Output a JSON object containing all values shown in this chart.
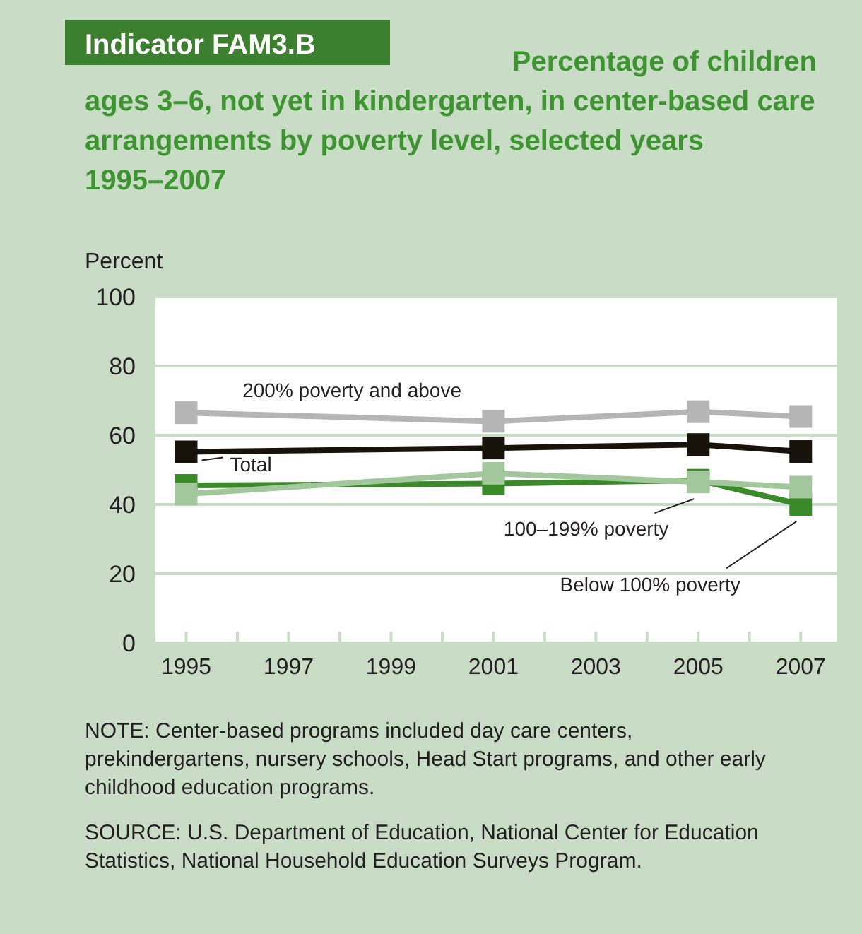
{
  "chart_data": {
    "type": "line",
    "title": "Indicator FAM3.B",
    "subtitle": "Percentage of children ages 3–6, not yet in kindergarten, in center-based care arrangements by poverty level, selected years 1995–2007",
    "ylabel": "Percent",
    "x": [
      1995,
      2001,
      2005,
      2007
    ],
    "xlim": [
      1994.4,
      2007.7
    ],
    "xticks": [
      1995,
      {
        "value": 1996,
        "label": null
      },
      1997,
      {
        "value": 1998,
        "label": null
      },
      1999,
      {
        "value": 2000,
        "label": null
      },
      2001,
      {
        "value": 2002,
        "label": null
      },
      2003,
      {
        "value": 2004,
        "label": null
      },
      2005,
      {
        "value": 2006,
        "label": null
      },
      2007
    ],
    "ylim": [
      0,
      100
    ],
    "yticks": [
      0,
      20,
      40,
      60,
      80,
      100
    ],
    "grid": "y",
    "marker": "square",
    "line_style": "solid",
    "series": [
      {
        "name": "Below 100% poverty",
        "color": "#3a8a2a",
        "values": [
          45.5,
          46,
          47,
          40
        ]
      },
      {
        "name": "100–199% poverty",
        "color": "#a3c79d",
        "values": [
          43,
          49,
          46.5,
          45
        ]
      },
      {
        "name": "Total",
        "color": "#17120a",
        "values": [
          55.2,
          56.3,
          57.3,
          55.3
        ]
      },
      {
        "name": "200% poverty and above",
        "color": "#b5b5b5",
        "values": [
          66.5,
          64,
          66.8,
          65.4
        ]
      }
    ],
    "annotations": [
      "NOTE: Center-based programs included day care centers, prekindergartens, nursery schools, Head Start programs, and other early childhood education programs.",
      "SOURCE: U.S. Department of Education, National Center for Education Statistics, National Household Education Surveys Program."
    ]
  }
}
